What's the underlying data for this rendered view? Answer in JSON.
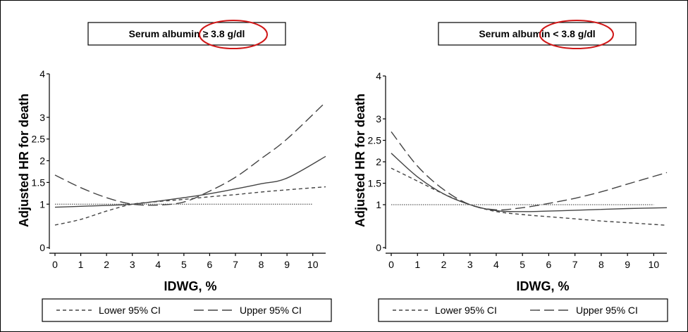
{
  "chart_data": [
    {
      "type": "line",
      "title": "Serum albumin ≥ 3.8 g/dl",
      "xlabel": "IDWG, %",
      "ylabel": "Adjusted HR for death",
      "x_ticks": [
        "0",
        "1",
        "2",
        "3",
        "4",
        "5",
        "6",
        "7",
        "8",
        "9",
        "10"
      ],
      "y_ticks": [
        "0",
        "1",
        "1.5",
        "2",
        "2.5",
        "3",
        "4"
      ],
      "xlim": [
        0,
        10.5
      ],
      "ylim": [
        0,
        4
      ],
      "grid": false,
      "legend_position": "bottom",
      "legend": [
        "Lower 95% CI",
        "Upper 95% CI"
      ],
      "reference_line": 1,
      "series": [
        {
          "name": "Lower 95% CI",
          "style": "dashed",
          "x": [
            0,
            1,
            2,
            3,
            4,
            5,
            6,
            7,
            8,
            9,
            10.5
          ],
          "y": [
            0.52,
            0.65,
            0.84,
            1.0,
            1.06,
            1.11,
            1.17,
            1.22,
            1.28,
            1.33,
            1.4
          ]
        },
        {
          "name": "Upper 95% CI",
          "style": "longdash",
          "x": [
            0,
            1,
            2,
            3,
            4,
            5,
            6,
            7,
            8,
            9,
            10.5
          ],
          "y": [
            1.67,
            1.38,
            1.15,
            1.0,
            0.98,
            1.05,
            1.3,
            1.62,
            2.05,
            2.5,
            3.35
          ]
        },
        {
          "name": "",
          "style": "solid",
          "x": [
            0,
            1,
            2,
            3,
            4,
            5,
            6,
            7,
            8,
            9,
            10.5
          ],
          "y": [
            0.93,
            0.95,
            0.97,
            1.0,
            1.07,
            1.15,
            1.24,
            1.35,
            1.47,
            1.6,
            2.1
          ]
        }
      ]
    },
    {
      "type": "line",
      "title": "Serum albumin < 3.8 g/dl",
      "xlabel": "IDWG, %",
      "ylabel": "Adjusted HR for death",
      "x_ticks": [
        "0",
        "1",
        "2",
        "3",
        "4",
        "5",
        "6",
        "7",
        "8",
        "9",
        "10"
      ],
      "y_ticks": [
        "0",
        "1",
        "1.5",
        "2",
        "2.5",
        "3",
        "4"
      ],
      "xlim": [
        0,
        10.5
      ],
      "ylim": [
        0,
        4
      ],
      "grid": false,
      "legend_position": "bottom",
      "legend": [
        "Lower 95% CI",
        "Upper 95% CI"
      ],
      "reference_line": 1,
      "series": [
        {
          "name": "Lower 95% CI",
          "style": "dashed",
          "x": [
            0,
            1,
            2,
            3,
            4,
            5,
            6,
            7,
            8,
            9,
            10.5
          ],
          "y": [
            1.85,
            1.55,
            1.25,
            1.0,
            0.84,
            0.77,
            0.72,
            0.67,
            0.62,
            0.58,
            0.52
          ]
        },
        {
          "name": "Upper 95% CI",
          "style": "longdash",
          "x": [
            0,
            1,
            2,
            3,
            4,
            5,
            6,
            7,
            8,
            9,
            10.5
          ],
          "y": [
            2.7,
            1.9,
            1.35,
            1.0,
            0.88,
            0.93,
            1.03,
            1.15,
            1.3,
            1.48,
            1.75
          ]
        },
        {
          "name": "",
          "style": "solid",
          "x": [
            0,
            1,
            2,
            3,
            4,
            5,
            6,
            7,
            8,
            9,
            10.5
          ],
          "y": [
            2.2,
            1.65,
            1.25,
            1.0,
            0.86,
            0.84,
            0.85,
            0.87,
            0.89,
            0.91,
            0.93
          ]
        }
      ]
    }
  ],
  "colors": {
    "line": "#444444",
    "highlight_circle": "#d01818"
  }
}
